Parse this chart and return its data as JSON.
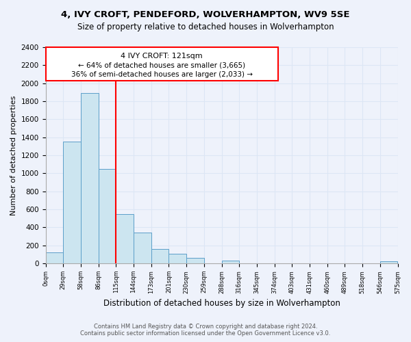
{
  "title": "4, IVY CROFT, PENDEFORD, WOLVERHAMPTON, WV9 5SE",
  "subtitle": "Size of property relative to detached houses in Wolverhampton",
  "xlabel": "Distribution of detached houses by size in Wolverhampton",
  "ylabel": "Number of detached properties",
  "bin_labels": [
    "0sqm",
    "29sqm",
    "58sqm",
    "86sqm",
    "115sqm",
    "144sqm",
    "173sqm",
    "201sqm",
    "230sqm",
    "259sqm",
    "288sqm",
    "316sqm",
    "345sqm",
    "374sqm",
    "403sqm",
    "431sqm",
    "460sqm",
    "489sqm",
    "518sqm",
    "546sqm",
    "575sqm"
  ],
  "bar_values": [
    125,
    1350,
    1890,
    1050,
    550,
    340,
    160,
    105,
    60,
    0,
    30,
    0,
    0,
    0,
    0,
    0,
    0,
    0,
    0,
    20
  ],
  "bar_color": "#cce5f0",
  "bar_edge_color": "#5b9ec9",
  "vline_color": "red",
  "annotation_title": "4 IVY CROFT: 121sqm",
  "annotation_line1": "← 64% of detached houses are smaller (3,665)",
  "annotation_line2": "36% of semi-detached houses are larger (2,033) →",
  "ylim": [
    0,
    2400
  ],
  "yticks": [
    0,
    200,
    400,
    600,
    800,
    1000,
    1200,
    1400,
    1600,
    1800,
    2000,
    2200,
    2400
  ],
  "footer_line1": "Contains HM Land Registry data © Crown copyright and database right 2024.",
  "footer_line2": "Contains public sector information licensed under the Open Government Licence v3.0.",
  "background_color": "#eef2fb",
  "grid_color": "#dce6f5",
  "plot_bg_color": "#eef2fb"
}
